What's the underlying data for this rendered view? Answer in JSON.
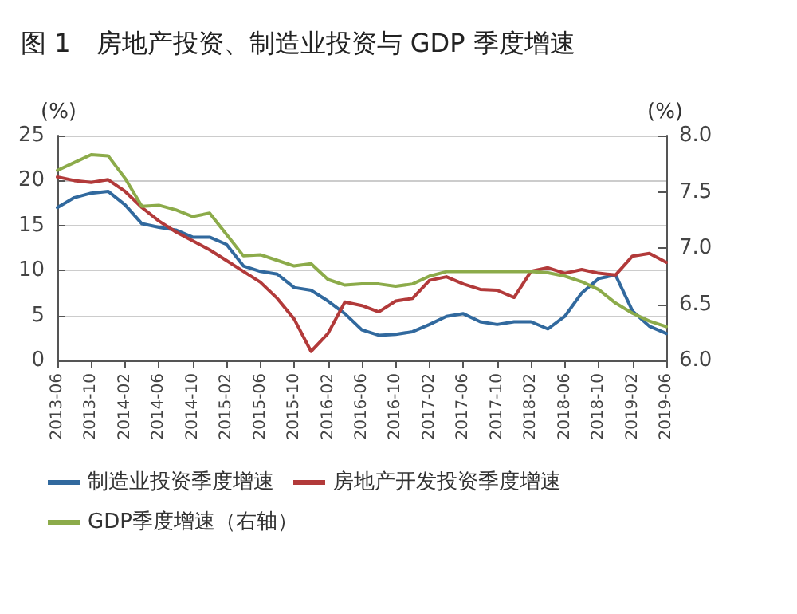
{
  "chart_data": {
    "type": "line",
    "title": "图 1　房地产投资、制造业投资与 GDP 季度增速",
    "ylabel": "(%)",
    "y2label": "(%)",
    "categories": [
      "2013-06",
      null,
      "2013-10",
      null,
      "2014-02",
      null,
      "2014-06",
      null,
      "2014-10",
      null,
      "2015-02",
      null,
      "2015-06",
      null,
      "2015-10",
      null,
      "2016-02",
      null,
      "2016-06",
      null,
      "2016-10",
      null,
      "2017-02",
      null,
      "2017-06",
      null,
      "2017-10",
      null,
      "2018-02",
      null,
      "2018-06",
      null,
      "2018-10",
      null,
      "2019-02",
      null,
      "2019-06"
    ],
    "series": [
      {
        "name": "制造业投资季度增速",
        "color": "#31699e",
        "values": [
          17.0,
          18.1,
          18.6,
          18.8,
          17.3,
          15.2,
          14.8,
          14.5,
          13.7,
          13.7,
          12.9,
          10.5,
          9.9,
          9.6,
          8.1,
          7.8,
          6.6,
          5.2,
          3.4,
          2.8,
          2.9,
          3.2,
          4.0,
          4.9,
          5.2,
          4.3,
          4.0,
          4.3,
          4.3,
          3.5,
          4.9,
          7.5,
          9.1,
          9.5,
          5.5,
          3.8,
          3.0
        ]
      },
      {
        "name": "房地产开发投资季度增速",
        "color": "#b23a3a",
        "values": [
          20.4,
          20.0,
          19.8,
          20.1,
          18.8,
          17.0,
          15.5,
          14.3,
          13.3,
          12.3,
          11.1,
          9.9,
          8.7,
          6.9,
          4.6,
          1.0,
          3.0,
          6.5,
          6.1,
          5.4,
          6.6,
          6.9,
          8.9,
          9.3,
          8.5,
          7.9,
          7.8,
          7.0,
          9.9,
          10.3,
          9.7,
          10.1,
          9.7,
          9.5,
          11.6,
          11.9,
          10.9
        ]
      },
      {
        "name": "GDP季度增速（右轴）",
        "color": "#8cab4a",
        "axis": "y2",
        "values": [
          7.69,
          7.76,
          7.83,
          7.82,
          7.62,
          7.37,
          7.38,
          7.34,
          7.28,
          7.31,
          7.12,
          6.93,
          6.94,
          6.89,
          6.84,
          6.86,
          6.72,
          6.67,
          6.68,
          6.68,
          6.66,
          6.68,
          6.75,
          6.79,
          6.79,
          6.79,
          6.79,
          6.79,
          6.79,
          6.78,
          6.75,
          6.7,
          6.63,
          6.51,
          6.42,
          6.35,
          6.3
        ]
      }
    ],
    "ylim": [
      0,
      25
    ],
    "yticks": [
      0,
      5,
      10,
      15,
      20,
      25
    ],
    "y2lim": [
      6,
      8
    ],
    "y2ticks": [
      {
        "value": 6,
        "label": "6.0"
      },
      {
        "value": 6.5,
        "label": "6.5"
      },
      {
        "value": 7,
        "label": "7.0"
      },
      {
        "value": 7.5,
        "label": "7.5"
      },
      {
        "value": 8,
        "label": "8.0"
      }
    ],
    "grid": "y",
    "legend": "bottom",
    "marker": "none",
    "line_style": "solid"
  }
}
